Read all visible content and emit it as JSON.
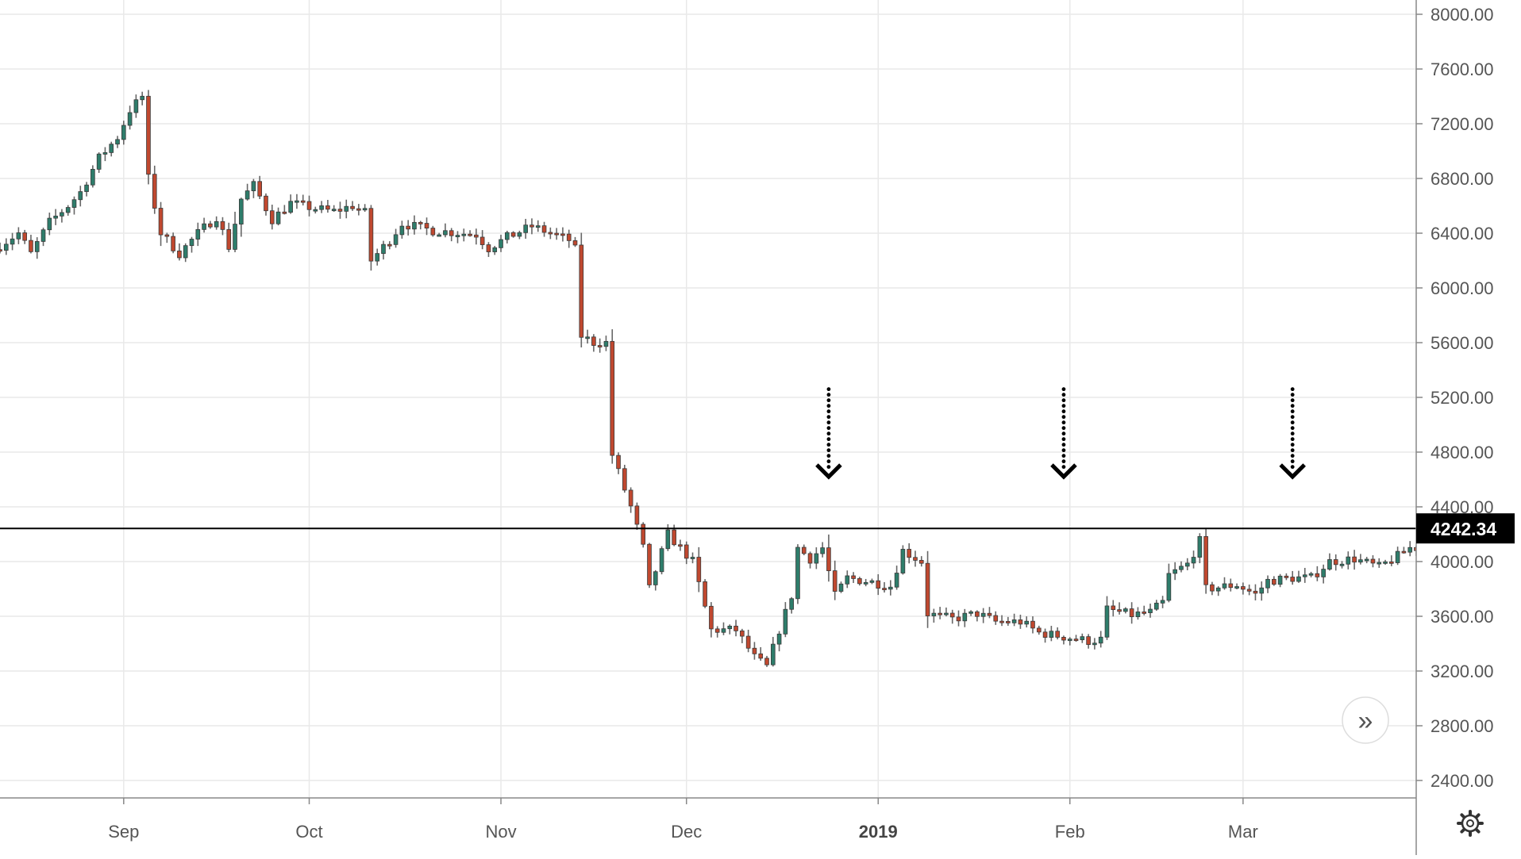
{
  "chart_data": {
    "type": "candlestick",
    "instrument_hint": "",
    "y_axis": {
      "ticks": [
        "8000.00",
        "7600.00",
        "7200.00",
        "6800.00",
        "6400.00",
        "6000.00",
        "5600.00",
        "5200.00",
        "4800.00",
        "4400.00",
        "4000.00",
        "3600.00",
        "3200.00",
        "2800.00",
        "2400.00"
      ],
      "range": [
        2300,
        8050
      ]
    },
    "x_axis": {
      "labels": [
        {
          "text": "Sep",
          "date": "2018-09-01",
          "strong": false
        },
        {
          "text": "Oct",
          "date": "2018-10-01",
          "strong": false
        },
        {
          "text": "Nov",
          "date": "2018-11-01",
          "strong": false
        },
        {
          "text": "Dec",
          "date": "2018-12-01",
          "strong": false
        },
        {
          "text": "2019",
          "date": "2019-01-01",
          "strong": true
        },
        {
          "text": "Feb",
          "date": "2019-02-01",
          "strong": false
        },
        {
          "text": "Mar",
          "date": "2019-03-01",
          "strong": false
        }
      ],
      "range": [
        "2018-08-12",
        "2019-03-29"
      ]
    },
    "current_price": {
      "value": 4242.34,
      "label": "4242.34"
    },
    "horizontal_line": 4242.34,
    "annotations": [
      {
        "type": "dotted-down-arrow",
        "date": "2018-12-24",
        "from_price": 5260,
        "to_price": 4620
      },
      {
        "type": "dotted-down-arrow",
        "date": "2019-01-31",
        "from_price": 5260,
        "to_price": 4620
      },
      {
        "type": "dotted-down-arrow",
        "date": "2019-03-09",
        "from_price": 5260,
        "to_price": 4620
      }
    ],
    "colors": {
      "up": "#2e7d6b",
      "down": "#c0482f",
      "wick": "#666666",
      "grid": "#e9e9e9",
      "axis": "#888888",
      "price_line": "#000000",
      "price_tag_bg": "#000000",
      "price_tag_text": "#ffffff",
      "annotation": "#000000"
    },
    "grid": true,
    "path": [
      [
        "2018-08-12",
        6280
      ],
      [
        "2018-08-16",
        6400
      ],
      [
        "2018-08-18",
        6250
      ],
      [
        "2018-08-21",
        6480
      ],
      [
        "2018-08-24",
        6600
      ],
      [
        "2018-08-26",
        6700
      ],
      [
        "2018-08-29",
        6950
      ],
      [
        "2018-09-01",
        7100
      ],
      [
        "2018-09-03",
        7300
      ],
      [
        "2018-09-05",
        7400
      ],
      [
        "2018-09-06",
        6800
      ],
      [
        "2018-09-08",
        6400
      ],
      [
        "2018-09-11",
        6250
      ],
      [
        "2018-09-14",
        6400
      ],
      [
        "2018-09-17",
        6520
      ],
      [
        "2018-09-19",
        6300
      ],
      [
        "2018-09-21",
        6650
      ],
      [
        "2018-09-23",
        6750
      ],
      [
        "2018-09-26",
        6500
      ],
      [
        "2018-09-29",
        6620
      ],
      [
        "2018-10-03",
        6580
      ],
      [
        "2018-10-06",
        6560
      ],
      [
        "2018-10-09",
        6600
      ],
      [
        "2018-10-11",
        6550
      ],
      [
        "2018-10-12",
        6200
      ],
      [
        "2018-10-15",
        6350
      ],
      [
        "2018-10-17",
        6470
      ],
      [
        "2018-10-22",
        6420
      ],
      [
        "2018-10-29",
        6390
      ],
      [
        "2018-10-31",
        6290
      ],
      [
        "2018-11-03",
        6370
      ],
      [
        "2018-11-07",
        6450
      ],
      [
        "2018-11-10",
        6400
      ],
      [
        "2018-11-13",
        6350
      ],
      [
        "2018-11-14",
        6280
      ],
      [
        "2018-11-15",
        5650
      ],
      [
        "2018-11-17",
        5600
      ],
      [
        "2018-11-19",
        5600
      ],
      [
        "2018-11-20",
        4780
      ],
      [
        "2018-11-23",
        4400
      ],
      [
        "2018-11-25",
        4100
      ],
      [
        "2018-11-26",
        3800
      ],
      [
        "2018-11-29",
        4200
      ],
      [
        "2018-12-03",
        4000
      ],
      [
        "2018-12-06",
        3500
      ],
      [
        "2018-12-10",
        3500
      ],
      [
        "2018-12-13",
        3300
      ],
      [
        "2018-12-15",
        3230
      ],
      [
        "2018-12-17",
        3500
      ],
      [
        "2018-12-19",
        3750
      ],
      [
        "2018-12-20",
        4100
      ],
      [
        "2018-12-22",
        4020
      ],
      [
        "2018-12-24",
        4100
      ],
      [
        "2018-12-26",
        3750
      ],
      [
        "2018-12-28",
        3880
      ],
      [
        "2019-01-01",
        3850
      ],
      [
        "2019-01-04",
        3820
      ],
      [
        "2019-01-06",
        4080
      ],
      [
        "2019-01-09",
        4000
      ],
      [
        "2019-01-10",
        3620
      ],
      [
        "2019-01-14",
        3580
      ],
      [
        "2019-01-18",
        3620
      ],
      [
        "2019-01-21",
        3560
      ],
      [
        "2019-01-25",
        3560
      ],
      [
        "2019-01-28",
        3480
      ],
      [
        "2019-02-01",
        3450
      ],
      [
        "2019-02-05",
        3420
      ],
      [
        "2019-02-07",
        3430
      ],
      [
        "2019-02-08",
        3650
      ],
      [
        "2019-02-12",
        3610
      ],
      [
        "2019-02-15",
        3630
      ],
      [
        "2019-02-17",
        3700
      ],
      [
        "2019-02-18",
        3900
      ],
      [
        "2019-02-21",
        3980
      ],
      [
        "2019-02-23",
        4150
      ],
      [
        "2019-02-24",
        3800
      ],
      [
        "2019-03-01",
        3830
      ],
      [
        "2019-03-04",
        3760
      ],
      [
        "2019-03-06",
        3860
      ],
      [
        "2019-03-10",
        3880
      ],
      [
        "2019-03-13",
        3880
      ],
      [
        "2019-03-16",
        4000
      ],
      [
        "2019-03-20",
        4020
      ],
      [
        "2019-03-24",
        3960
      ],
      [
        "2019-03-27",
        4040
      ],
      [
        "2019-03-29",
        4100
      ]
    ]
  },
  "ui": {
    "scroll_button_glyph": "»",
    "settings_icon": "gear-icon"
  }
}
